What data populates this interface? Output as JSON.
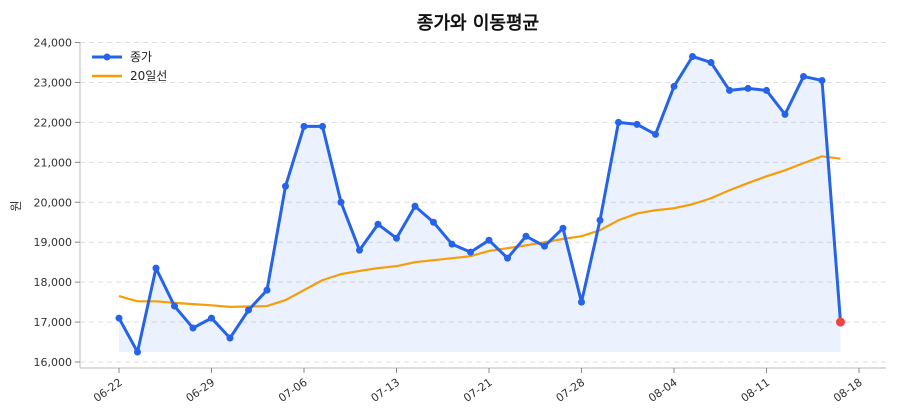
{
  "chart_data": {
    "type": "line",
    "title": "종가와 이동평균",
    "xlabel": "",
    "ylabel": "원",
    "ylim": [
      16000,
      24000
    ],
    "yticks": [
      "16,000",
      "17,000",
      "18,000",
      "19,000",
      "20,000",
      "21,000",
      "22,000",
      "23,000",
      "24,000"
    ],
    "ytick_values": [
      16000,
      17000,
      18000,
      19000,
      20000,
      21000,
      22000,
      23000,
      24000
    ],
    "xtick_labels": [
      "06-22",
      "06-29",
      "07-06",
      "07-13",
      "07-21",
      "07-28",
      "08-04",
      "08-11",
      "08-18"
    ],
    "xtick_index": [
      0,
      5,
      10,
      15,
      20,
      25,
      30,
      35,
      40
    ],
    "grid": "horizontal-dashed",
    "legend_position": "top-left",
    "series": [
      {
        "name": "종가",
        "color": "#2563eb",
        "style": "line-markers-area",
        "values": [
          17100,
          16250,
          18350,
          17400,
          16850,
          17100,
          16600,
          17300,
          17800,
          20400,
          21900,
          21900,
          20000,
          18800,
          19450,
          19100,
          19900,
          19500,
          18950,
          18750,
          19050,
          18600,
          19150,
          18900,
          19350,
          17500,
          19550,
          22000,
          21950,
          21700,
          22900,
          23650,
          23500,
          22800,
          22850,
          22800,
          22200,
          23150,
          23050,
          17000
        ]
      },
      {
        "name": "20일선",
        "color": "#f59e0b",
        "style": "line",
        "values": [
          17650,
          17520,
          17520,
          17480,
          17450,
          17420,
          17380,
          17390,
          17400,
          17550,
          17800,
          18050,
          18200,
          18280,
          18350,
          18400,
          18500,
          18550,
          18600,
          18650,
          18780,
          18850,
          18920,
          19000,
          19080,
          19150,
          19300,
          19550,
          19720,
          19800,
          19850,
          19950,
          20100,
          20300,
          20480,
          20650,
          20800,
          20980,
          21150,
          21090
        ]
      },
      {
        "name": "",
        "role": "last-point-highlight",
        "color": "#ef4444",
        "values": [
          17000
        ]
      }
    ]
  }
}
